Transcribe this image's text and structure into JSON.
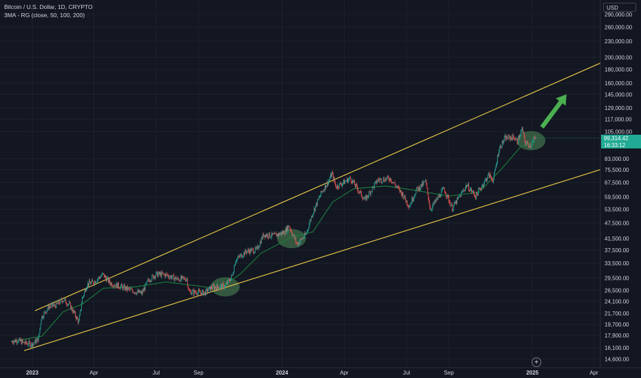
{
  "header": {
    "symbol_line": "Bitcoin / U.S. Dollar, 1D, CRYPTO",
    "indicator_line": "3MA - RG (close, 50, 100, 200)"
  },
  "price_scale": {
    "currency": "USD",
    "log_scale": true,
    "ticks": [
      290000,
      260000,
      230000,
      200000,
      180000,
      160000,
      145000,
      129000,
      117000,
      105000,
      83000,
      75500,
      67500,
      59500,
      53500,
      47500,
      41500,
      37500,
      33500,
      29500,
      26500,
      24100,
      21700,
      19700,
      17900,
      16100,
      14600
    ],
    "tick_labels": [
      "290,000.00",
      "260,000.00",
      "230,000.00",
      "200,000.00",
      "180,000.00",
      "160,000.00",
      "145,000.00",
      "129,000.00",
      "117,000.00",
      "105,000.00",
      "83,000.00",
      "75,500.00",
      "67,500.00",
      "59,500.00",
      "53,500.00",
      "47,500.00",
      "41,500.00",
      "37,500.00",
      "33,500.00",
      "29,500.00",
      "26,500.00",
      "24,100.00",
      "21,700.00",
      "19,700.00",
      "17,900.00",
      "16,100.00",
      "14,600.00"
    ]
  },
  "current_price": {
    "price_label": "99,314.42",
    "countdown": "16:33:12",
    "color": "#22ab94"
  },
  "time_axis": {
    "labels": [
      "2023",
      "Apr",
      "Jul",
      "Sep",
      "2024",
      "Apr",
      "Jul",
      "Sep",
      "2025",
      "Apr"
    ],
    "bold": [
      true,
      false,
      false,
      false,
      true,
      false,
      false,
      false,
      true,
      false
    ]
  },
  "chart_data": {
    "type": "candlestick",
    "title": "Bitcoin / U.S. Dollar, 1D, CRYPTO",
    "y_scale": "log",
    "ylim": [
      14000,
      300000
    ],
    "grid": true,
    "colors": {
      "up": "#26a69a",
      "down": "#ef5350",
      "ma": "#1b7a3c",
      "trendline": "#e8c547",
      "arrow": "#4caf50",
      "highlight": "#3f6e4a"
    },
    "price_path": [
      [
        "2022-12-01",
        17000
      ],
      [
        "2022-12-10",
        17200
      ],
      [
        "2022-12-20",
        16800
      ],
      [
        "2023-01-01",
        16600
      ],
      [
        "2023-01-10",
        17400
      ],
      [
        "2023-01-14",
        20900
      ],
      [
        "2023-01-25",
        23000
      ],
      [
        "2023-02-05",
        23300
      ],
      [
        "2023-02-15",
        24500
      ],
      [
        "2023-02-25",
        23300
      ],
      [
        "2023-03-10",
        20100
      ],
      [
        "2023-03-15",
        24700
      ],
      [
        "2023-03-22",
        27900
      ],
      [
        "2023-04-01",
        28500
      ],
      [
        "2023-04-14",
        30400
      ],
      [
        "2023-04-25",
        28200
      ],
      [
        "2023-05-10",
        27400
      ],
      [
        "2023-05-25",
        26500
      ],
      [
        "2023-06-10",
        25800
      ],
      [
        "2023-06-20",
        29000
      ],
      [
        "2023-07-01",
        30500
      ],
      [
        "2023-07-15",
        30300
      ],
      [
        "2023-08-01",
        29200
      ],
      [
        "2023-08-15",
        29300
      ],
      [
        "2023-08-18",
        26200
      ],
      [
        "2023-09-10",
        25900
      ],
      [
        "2023-09-20",
        27200
      ],
      [
        "2023-10-10",
        27500
      ],
      [
        "2023-10-20",
        30000
      ],
      [
        "2023-10-25",
        34500
      ],
      [
        "2023-11-10",
        37200
      ],
      [
        "2023-11-25",
        37600
      ],
      [
        "2023-12-05",
        43000
      ],
      [
        "2023-12-20",
        42500
      ],
      [
        "2024-01-05",
        44000
      ],
      [
        "2024-01-11",
        46500
      ],
      [
        "2024-01-23",
        39500
      ],
      [
        "2024-02-05",
        43000
      ],
      [
        "2024-02-15",
        52000
      ],
      [
        "2024-02-28",
        62000
      ],
      [
        "2024-03-10",
        69000
      ],
      [
        "2024-03-14",
        73000
      ],
      [
        "2024-03-20",
        65000
      ],
      [
        "2024-04-10",
        70000
      ],
      [
        "2024-04-20",
        64000
      ],
      [
        "2024-05-01",
        58000
      ],
      [
        "2024-05-20",
        69000
      ],
      [
        "2024-06-07",
        70000
      ],
      [
        "2024-06-25",
        61000
      ],
      [
        "2024-07-05",
        55000
      ],
      [
        "2024-07-15",
        63000
      ],
      [
        "2024-07-29",
        68000
      ],
      [
        "2024-08-05",
        53500
      ],
      [
        "2024-08-25",
        64000
      ],
      [
        "2024-09-06",
        54000
      ],
      [
        "2024-09-27",
        66000
      ],
      [
        "2024-10-10",
        60000
      ],
      [
        "2024-10-29",
        72000
      ],
      [
        "2024-11-05",
        69000
      ],
      [
        "2024-11-13",
        90000
      ],
      [
        "2024-11-22",
        99000
      ],
      [
        "2024-12-05",
        100000
      ],
      [
        "2024-12-10",
        96000
      ],
      [
        "2024-12-17",
        107000
      ],
      [
        "2024-12-22",
        95000
      ],
      [
        "2024-12-30",
        93000
      ],
      [
        "2025-01-03",
        98000
      ],
      [
        "2025-01-06",
        99314.42
      ]
    ],
    "moving_average": [
      [
        "2022-12-01",
        17000
      ],
      [
        "2023-01-15",
        17800
      ],
      [
        "2023-02-15",
        22000
      ],
      [
        "2023-03-15",
        23500
      ],
      [
        "2023-04-15",
        27000
      ],
      [
        "2023-06-01",
        27300
      ],
      [
        "2023-07-15",
        28500
      ],
      [
        "2023-09-01",
        27500
      ],
      [
        "2023-10-01",
        26800
      ],
      [
        "2023-11-01",
        30500
      ],
      [
        "2023-12-01",
        36500
      ],
      [
        "2024-01-15",
        42000
      ],
      [
        "2024-02-15",
        44000
      ],
      [
        "2024-03-15",
        57000
      ],
      [
        "2024-04-15",
        64000
      ],
      [
        "2024-06-01",
        65500
      ],
      [
        "2024-07-15",
        63000
      ],
      [
        "2024-09-01",
        60000
      ],
      [
        "2024-10-15",
        62000
      ],
      [
        "2024-11-15",
        75000
      ],
      [
        "2024-12-15",
        92000
      ],
      [
        "2025-01-06",
        96000
      ]
    ],
    "trendlines": [
      {
        "from": [
          "2023-01-05",
          22200
        ],
        "to": [
          "2025-05-15",
          208000
        ]
      },
      {
        "from": [
          "2022-12-20",
          15700
        ],
        "to": [
          "2025-05-15",
          80500
        ]
      }
    ],
    "highlight_zones": [
      {
        "date": "2023-10-10",
        "price": 27300
      },
      {
        "date": "2024-01-15",
        "price": 41500
      },
      {
        "date": "2024-12-30",
        "price": 97000
      }
    ],
    "projection_arrow": {
      "from": [
        "2025-01-15",
        109000
      ],
      "to": [
        "2025-02-20",
        145000
      ]
    }
  }
}
